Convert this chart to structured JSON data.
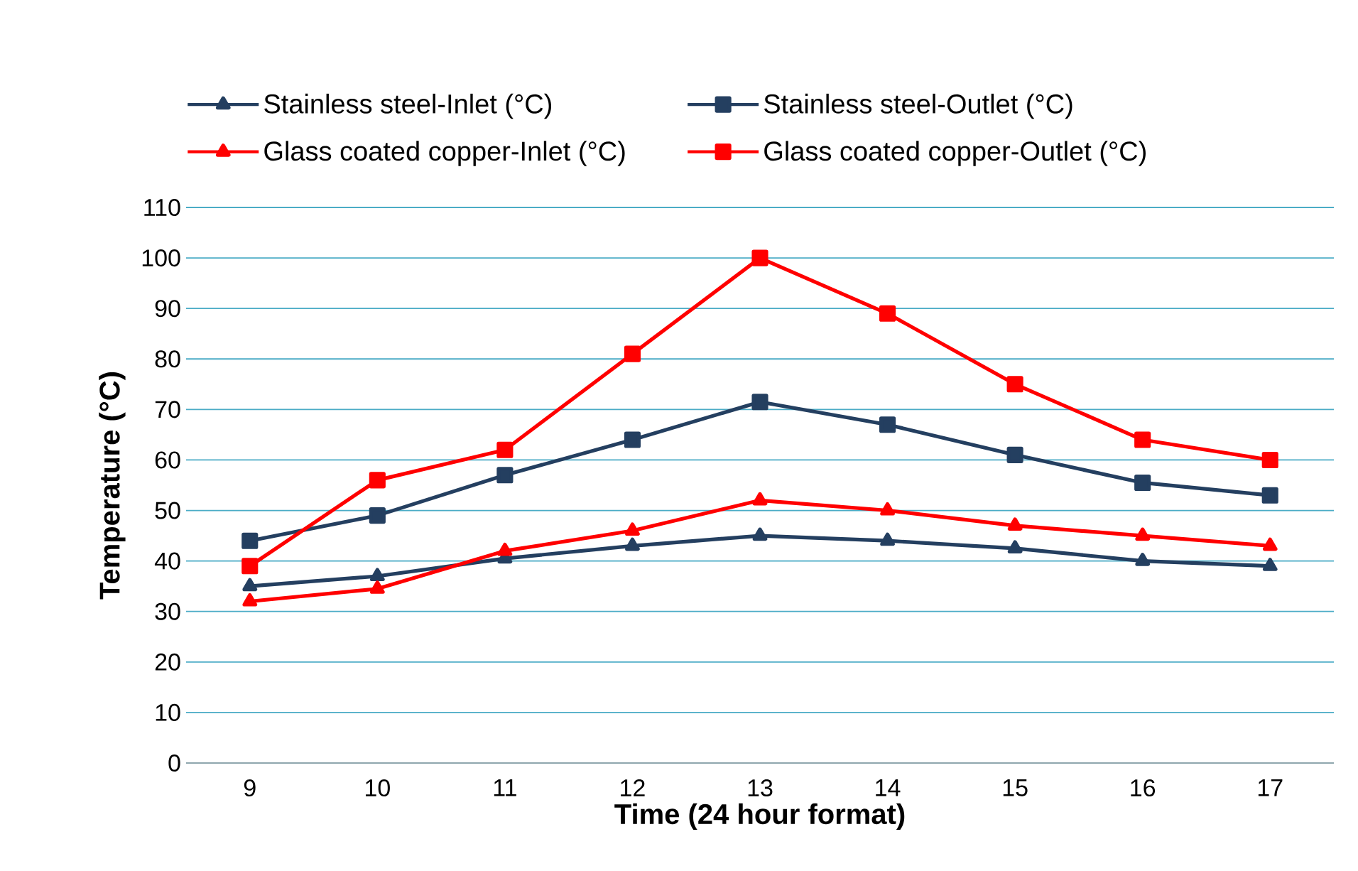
{
  "chart_data": {
    "type": "line",
    "xlabel": "Time (24 hour format)",
    "ylabel": "Temperature (°C)",
    "categories": [
      "9",
      "10",
      "11",
      "12",
      "13",
      "14",
      "15",
      "16",
      "17"
    ],
    "series": [
      {
        "name": "Stainless steel-Inlet (°C)",
        "color": "#243f60",
        "marker": "triangle",
        "values": [
          35,
          37,
          40.5,
          43,
          45,
          44,
          42.5,
          40,
          39
        ]
      },
      {
        "name": "Stainless steel-Outlet (°C)",
        "color": "#243f60",
        "marker": "square",
        "values": [
          44,
          49,
          57,
          64,
          71.5,
          67,
          61,
          55.5,
          53
        ]
      },
      {
        "name": "Glass coated copper-Inlet (°C)",
        "color": "#ff0000",
        "marker": "triangle",
        "values": [
          32,
          34.5,
          42,
          46,
          52,
          50,
          47,
          45,
          43
        ]
      },
      {
        "name": "Glass coated copper-Outlet (°C)",
        "color": "#ff0000",
        "marker": "square",
        "values": [
          39,
          56,
          62,
          81,
          100,
          89,
          75,
          64,
          60
        ]
      }
    ],
    "ylim": [
      0,
      110
    ],
    "yticks": [
      0,
      10,
      20,
      30,
      40,
      50,
      60,
      70,
      80,
      90,
      100,
      110
    ],
    "grid": "y",
    "legend": "top",
    "line_style": "solid"
  }
}
